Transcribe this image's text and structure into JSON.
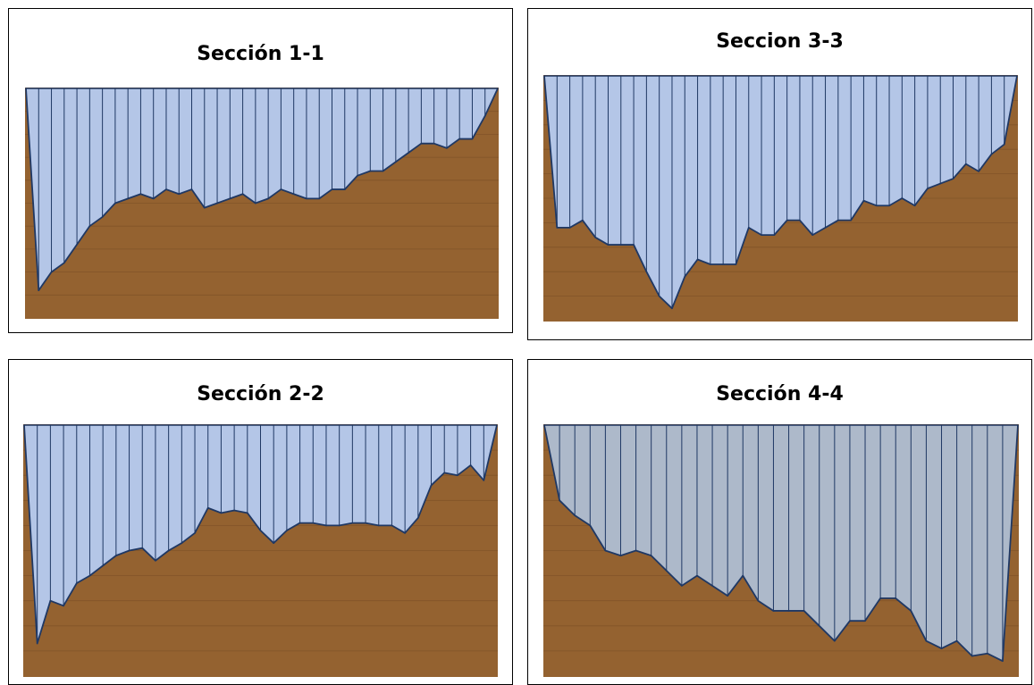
{
  "colors": {
    "ground": "#946230",
    "water": "#B4C6E7",
    "water_alt": "#ADB9CA",
    "outline": "#1F3864",
    "gridline": "#7a4f26"
  },
  "chart_data": [
    {
      "type": "area",
      "title": "Sección 1-1",
      "xlabel": "",
      "ylabel": "",
      "grid": true,
      "water_level": 10,
      "ylim": [
        0,
        10
      ],
      "y": [
        10,
        1.2,
        2.0,
        2.4,
        3.2,
        4.0,
        4.4,
        5.0,
        5.2,
        5.4,
        5.2,
        5.6,
        5.4,
        5.6,
        4.8,
        5.0,
        5.2,
        5.4,
        5.0,
        5.2,
        5.6,
        5.4,
        5.2,
        5.2,
        5.6,
        5.6,
        6.2,
        6.4,
        6.4,
        6.8,
        7.2,
        7.6,
        7.6,
        7.4,
        7.8,
        7.8,
        8.8,
        10
      ]
    },
    {
      "type": "area",
      "title": "Seccion 3-3",
      "xlabel": "",
      "ylabel": "",
      "grid": true,
      "water_level": 10,
      "ylim": [
        0,
        10
      ],
      "y": [
        10,
        3.8,
        3.8,
        4.1,
        3.4,
        3.1,
        3.1,
        3.1,
        2.0,
        1.0,
        0.5,
        1.8,
        2.5,
        2.3,
        2.3,
        2.3,
        3.8,
        3.5,
        3.5,
        4.1,
        4.1,
        3.5,
        3.8,
        4.1,
        4.1,
        4.9,
        4.7,
        4.7,
        5.0,
        4.7,
        5.4,
        5.6,
        5.8,
        6.4,
        6.1,
        6.8,
        7.2,
        10
      ]
    },
    {
      "type": "area",
      "title": "Sección 2-2",
      "xlabel": "",
      "ylabel": "",
      "grid": true,
      "water_level": 10,
      "ylim": [
        0,
        10
      ],
      "y": [
        10,
        1.3,
        3.0,
        2.8,
        3.7,
        4.0,
        4.4,
        4.8,
        5.0,
        5.1,
        4.6,
        5.0,
        5.3,
        5.7,
        6.7,
        6.5,
        6.6,
        6.5,
        5.8,
        5.3,
        5.8,
        6.1,
        6.1,
        6.0,
        6.0,
        6.1,
        6.1,
        6.0,
        6.0,
        5.7,
        6.3,
        7.6,
        8.1,
        8.0,
        8.4,
        7.8,
        10
      ]
    },
    {
      "type": "area",
      "title": "Sección 4-4",
      "xlabel": "",
      "ylabel": "",
      "grid": true,
      "water_level": 10,
      "ylim": [
        0,
        10
      ],
      "y": [
        10,
        7.0,
        6.4,
        6.0,
        5.0,
        4.8,
        5.0,
        4.8,
        4.2,
        3.6,
        4.0,
        3.6,
        3.2,
        4.0,
        3.0,
        2.6,
        2.6,
        2.6,
        2.0,
        1.4,
        2.2,
        2.2,
        3.1,
        3.1,
        2.6,
        1.4,
        1.1,
        1.4,
        0.8,
        0.9,
        0.6,
        10
      ]
    }
  ]
}
